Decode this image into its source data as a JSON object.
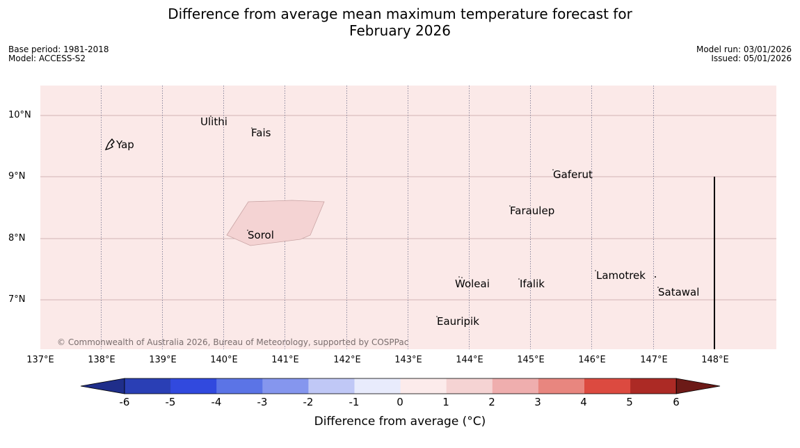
{
  "title_line1": "Difference from average mean maximum temperature forecast for",
  "title_line2": "February 2026",
  "base_period": "Base period: 1981-2018",
  "model": "Model: ACCESS-S2",
  "model_run": "Model run: 03/01/2026",
  "issued": "Issued: 05/01/2026",
  "lat_labels": [
    "10°N",
    "9°N",
    "8°N",
    "7°N"
  ],
  "lon_labels": [
    "137°E",
    "138°E",
    "139°E",
    "140°E",
    "141°E",
    "142°E",
    "143°E",
    "144°E",
    "145°E",
    "146°E",
    "147°E",
    "148°E"
  ],
  "places": {
    "yap": "Yap",
    "ulithi": "Ulithi",
    "fais": "Fais",
    "gaferut": "Gaferut",
    "faraulep": "Faraulep",
    "sorol": "Sorol",
    "lamotrek": "Lamotrek",
    "woleai": "Woleai",
    "ifalik": "Ifalik",
    "satawal": "Satawal",
    "eauripik": "Eauripik"
  },
  "copyright": "© Commonwealth of Australia 2026, Bureau of Meteorology, supported by COSPPac",
  "colorbar": {
    "ticks": [
      "-6",
      "-5",
      "-4",
      "-3",
      "-2",
      "-1",
      "0",
      "1",
      "2",
      "3",
      "4",
      "5",
      "6"
    ],
    "colors": [
      "#1f2e8a",
      "#2a3fb5",
      "#3149de",
      "#5b74e6",
      "#8596ee",
      "#c0c8f6",
      "#e8ebfc",
      "#fcebeb",
      "#f5d3d3",
      "#efaeae",
      "#e8867f",
      "#dc4a40",
      "#ac2a25",
      "#6c1a17"
    ],
    "label": "Difference from average (°C)"
  },
  "colors": {
    "background_anomaly": "#fbe9e8",
    "highlight_region": "#f4d3d3"
  }
}
